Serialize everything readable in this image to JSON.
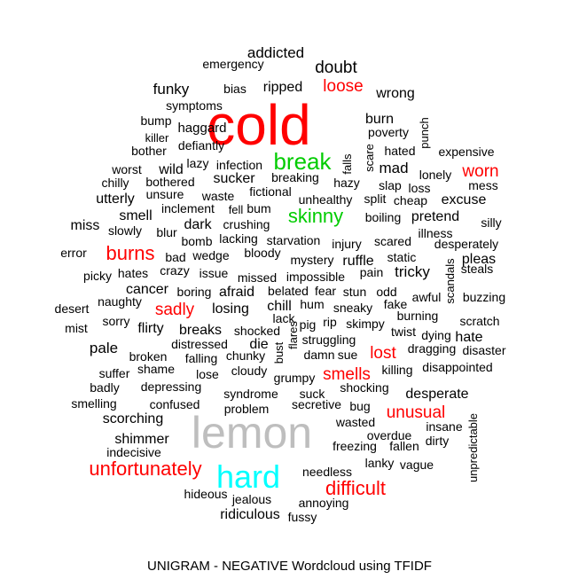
{
  "chart_data": {
    "type": "wordcloud",
    "title": "UNIGRAM - NEGATIVE Wordcloud using TFIDF",
    "colors": {
      "red": "#ff0000",
      "green": "#00cc00",
      "cyan": "#00ffff",
      "gray": "#bebebe",
      "black": "#000000"
    },
    "words": [
      {
        "text": "addicted",
        "color": "black",
        "weight": 17
      },
      {
        "text": "emergency",
        "color": "black",
        "weight": 14
      },
      {
        "text": "doubt",
        "color": "black",
        "weight": 19
      },
      {
        "text": "funky",
        "color": "black",
        "weight": 17
      },
      {
        "text": "bias",
        "color": "black",
        "weight": 14
      },
      {
        "text": "ripped",
        "color": "black",
        "weight": 16
      },
      {
        "text": "loose",
        "color": "red",
        "weight": 19
      },
      {
        "text": "wrong",
        "color": "black",
        "weight": 16
      },
      {
        "text": "symptoms",
        "color": "black",
        "weight": 14
      },
      {
        "text": "cold",
        "color": "red",
        "weight": 64
      },
      {
        "text": "bump",
        "color": "black",
        "weight": 14
      },
      {
        "text": "haggard",
        "color": "black",
        "weight": 15
      },
      {
        "text": "burn",
        "color": "black",
        "weight": 16
      },
      {
        "text": "punch",
        "color": "black",
        "weight": 13
      },
      {
        "text": "killer",
        "color": "black",
        "weight": 13
      },
      {
        "text": "poverty",
        "color": "black",
        "weight": 14
      },
      {
        "text": "bother",
        "color": "black",
        "weight": 14
      },
      {
        "text": "defiantly",
        "color": "black",
        "weight": 14
      },
      {
        "text": "hated",
        "color": "black",
        "weight": 14
      },
      {
        "text": "expensive",
        "color": "black",
        "weight": 14
      },
      {
        "text": "scare",
        "color": "black",
        "weight": 13
      },
      {
        "text": "lazy",
        "color": "black",
        "weight": 14
      },
      {
        "text": "break",
        "color": "green",
        "weight": 26
      },
      {
        "text": "worst",
        "color": "black",
        "weight": 14
      },
      {
        "text": "wild",
        "color": "black",
        "weight": 16
      },
      {
        "text": "infection",
        "color": "black",
        "weight": 14
      },
      {
        "text": "falls",
        "color": "black",
        "weight": 13
      },
      {
        "text": "mad",
        "color": "black",
        "weight": 17
      },
      {
        "text": "lonely",
        "color": "black",
        "weight": 14
      },
      {
        "text": "worn",
        "color": "red",
        "weight": 19
      },
      {
        "text": "chilly",
        "color": "black",
        "weight": 14
      },
      {
        "text": "bothered",
        "color": "black",
        "weight": 14
      },
      {
        "text": "sucker",
        "color": "black",
        "weight": 16
      },
      {
        "text": "breaking",
        "color": "black",
        "weight": 14
      },
      {
        "text": "hazy",
        "color": "black",
        "weight": 14
      },
      {
        "text": "slap",
        "color": "black",
        "weight": 14
      },
      {
        "text": "loss",
        "color": "black",
        "weight": 14
      },
      {
        "text": "mess",
        "color": "black",
        "weight": 14
      },
      {
        "text": "utterly",
        "color": "black",
        "weight": 16
      },
      {
        "text": "unsure",
        "color": "black",
        "weight": 14
      },
      {
        "text": "waste",
        "color": "black",
        "weight": 14
      },
      {
        "text": "fictional",
        "color": "black",
        "weight": 14
      },
      {
        "text": "unhealthy",
        "color": "black",
        "weight": 14
      },
      {
        "text": "split",
        "color": "black",
        "weight": 14
      },
      {
        "text": "cheap",
        "color": "black",
        "weight": 14
      },
      {
        "text": "excuse",
        "color": "black",
        "weight": 16
      },
      {
        "text": "inclement",
        "color": "black",
        "weight": 14
      },
      {
        "text": "fell",
        "color": "black",
        "weight": 13
      },
      {
        "text": "bum",
        "color": "black",
        "weight": 14
      },
      {
        "text": "skinny",
        "color": "green",
        "weight": 22
      },
      {
        "text": "smell",
        "color": "black",
        "weight": 16
      },
      {
        "text": "boiling",
        "color": "black",
        "weight": 14
      },
      {
        "text": "pretend",
        "color": "black",
        "weight": 16
      },
      {
        "text": "miss",
        "color": "black",
        "weight": 16
      },
      {
        "text": "dark",
        "color": "black",
        "weight": 16
      },
      {
        "text": "crushing",
        "color": "black",
        "weight": 14
      },
      {
        "text": "silly",
        "color": "black",
        "weight": 14
      },
      {
        "text": "slowly",
        "color": "black",
        "weight": 14
      },
      {
        "text": "blur",
        "color": "black",
        "weight": 14
      },
      {
        "text": "illness",
        "color": "black",
        "weight": 14
      },
      {
        "text": "bomb",
        "color": "black",
        "weight": 14
      },
      {
        "text": "lacking",
        "color": "black",
        "weight": 14
      },
      {
        "text": "starvation",
        "color": "black",
        "weight": 14
      },
      {
        "text": "injury",
        "color": "black",
        "weight": 14
      },
      {
        "text": "scared",
        "color": "black",
        "weight": 14
      },
      {
        "text": "desperately",
        "color": "black",
        "weight": 14
      },
      {
        "text": "error",
        "color": "black",
        "weight": 14
      },
      {
        "text": "burns",
        "color": "red",
        "weight": 22
      },
      {
        "text": "bad",
        "color": "black",
        "weight": 14
      },
      {
        "text": "wedge",
        "color": "black",
        "weight": 14
      },
      {
        "text": "bloody",
        "color": "black",
        "weight": 14
      },
      {
        "text": "static",
        "color": "black",
        "weight": 14
      },
      {
        "text": "mystery",
        "color": "black",
        "weight": 14
      },
      {
        "text": "ruffle",
        "color": "black",
        "weight": 16
      },
      {
        "text": "pleas",
        "color": "black",
        "weight": 16
      },
      {
        "text": "crazy",
        "color": "black",
        "weight": 14
      },
      {
        "text": "scandals",
        "color": "black",
        "weight": 13
      },
      {
        "text": "steals",
        "color": "black",
        "weight": 14
      },
      {
        "text": "picky",
        "color": "black",
        "weight": 14
      },
      {
        "text": "hates",
        "color": "black",
        "weight": 14
      },
      {
        "text": "issue",
        "color": "black",
        "weight": 14
      },
      {
        "text": "missed",
        "color": "black",
        "weight": 14
      },
      {
        "text": "impossible",
        "color": "black",
        "weight": 14
      },
      {
        "text": "pain",
        "color": "black",
        "weight": 14
      },
      {
        "text": "tricky",
        "color": "black",
        "weight": 17
      },
      {
        "text": "cancer",
        "color": "black",
        "weight": 16
      },
      {
        "text": "boring",
        "color": "black",
        "weight": 14
      },
      {
        "text": "afraid",
        "color": "black",
        "weight": 16
      },
      {
        "text": "belated",
        "color": "black",
        "weight": 14
      },
      {
        "text": "fear",
        "color": "black",
        "weight": 14
      },
      {
        "text": "stun",
        "color": "black",
        "weight": 14
      },
      {
        "text": "odd",
        "color": "black",
        "weight": 14
      },
      {
        "text": "awful",
        "color": "black",
        "weight": 14
      },
      {
        "text": "buzzing",
        "color": "black",
        "weight": 14
      },
      {
        "text": "naughty",
        "color": "black",
        "weight": 14
      },
      {
        "text": "chill",
        "color": "black",
        "weight": 16
      },
      {
        "text": "hum",
        "color": "black",
        "weight": 14
      },
      {
        "text": "fake",
        "color": "black",
        "weight": 14
      },
      {
        "text": "desert",
        "color": "black",
        "weight": 14
      },
      {
        "text": "sadly",
        "color": "red",
        "weight": 19
      },
      {
        "text": "losing",
        "color": "black",
        "weight": 16
      },
      {
        "text": "sneaky",
        "color": "black",
        "weight": 14
      },
      {
        "text": "sorry",
        "color": "black",
        "weight": 14
      },
      {
        "text": "lack",
        "color": "black",
        "weight": 14
      },
      {
        "text": "pig",
        "color": "black",
        "weight": 14
      },
      {
        "text": "rip",
        "color": "black",
        "weight": 14
      },
      {
        "text": "skimpy",
        "color": "black",
        "weight": 14
      },
      {
        "text": "burning",
        "color": "black",
        "weight": 14
      },
      {
        "text": "scratch",
        "color": "black",
        "weight": 14
      },
      {
        "text": "mist",
        "color": "black",
        "weight": 14
      },
      {
        "text": "flirty",
        "color": "black",
        "weight": 16
      },
      {
        "text": "breaks",
        "color": "black",
        "weight": 16
      },
      {
        "text": "shocked",
        "color": "black",
        "weight": 14
      },
      {
        "text": "flares",
        "color": "black",
        "weight": 13
      },
      {
        "text": "twist",
        "color": "black",
        "weight": 14
      },
      {
        "text": "dying",
        "color": "black",
        "weight": 14
      },
      {
        "text": "hate",
        "color": "black",
        "weight": 16
      },
      {
        "text": "pale",
        "color": "black",
        "weight": 17
      },
      {
        "text": "distressed",
        "color": "black",
        "weight": 14
      },
      {
        "text": "die",
        "color": "black",
        "weight": 16
      },
      {
        "text": "struggling",
        "color": "black",
        "weight": 14
      },
      {
        "text": "dragging",
        "color": "black",
        "weight": 14
      },
      {
        "text": "disaster",
        "color": "black",
        "weight": 14
      },
      {
        "text": "broken",
        "color": "black",
        "weight": 14
      },
      {
        "text": "falling",
        "color": "black",
        "weight": 14
      },
      {
        "text": "chunky",
        "color": "black",
        "weight": 14
      },
      {
        "text": "bust",
        "color": "black",
        "weight": 13
      },
      {
        "text": "damn",
        "color": "black",
        "weight": 14
      },
      {
        "text": "sue",
        "color": "black",
        "weight": 14
      },
      {
        "text": "lost",
        "color": "red",
        "weight": 19
      },
      {
        "text": "suffer",
        "color": "black",
        "weight": 14
      },
      {
        "text": "shame",
        "color": "black",
        "weight": 14
      },
      {
        "text": "lose",
        "color": "black",
        "weight": 14
      },
      {
        "text": "cloudy",
        "color": "black",
        "weight": 14
      },
      {
        "text": "grumpy",
        "color": "black",
        "weight": 14
      },
      {
        "text": "smells",
        "color": "red",
        "weight": 19
      },
      {
        "text": "killing",
        "color": "black",
        "weight": 14
      },
      {
        "text": "disappointed",
        "color": "black",
        "weight": 14
      },
      {
        "text": "badly",
        "color": "black",
        "weight": 14
      },
      {
        "text": "depressing",
        "color": "black",
        "weight": 14
      },
      {
        "text": "syndrome",
        "color": "black",
        "weight": 14
      },
      {
        "text": "suck",
        "color": "black",
        "weight": 14
      },
      {
        "text": "shocking",
        "color": "black",
        "weight": 14
      },
      {
        "text": "desperate",
        "color": "black",
        "weight": 16
      },
      {
        "text": "smelling",
        "color": "black",
        "weight": 14
      },
      {
        "text": "confused",
        "color": "black",
        "weight": 14
      },
      {
        "text": "problem",
        "color": "black",
        "weight": 14
      },
      {
        "text": "secretive",
        "color": "black",
        "weight": 14
      },
      {
        "text": "bug",
        "color": "black",
        "weight": 14
      },
      {
        "text": "unusual",
        "color": "red",
        "weight": 19
      },
      {
        "text": "unpredictable",
        "color": "black",
        "weight": 13
      },
      {
        "text": "scorching",
        "color": "black",
        "weight": 16
      },
      {
        "text": "wasted",
        "color": "black",
        "weight": 14
      },
      {
        "text": "insane",
        "color": "black",
        "weight": 14
      },
      {
        "text": "lemon",
        "color": "gray",
        "weight": 50
      },
      {
        "text": "overdue",
        "color": "black",
        "weight": 14
      },
      {
        "text": "shimmer",
        "color": "black",
        "weight": 16
      },
      {
        "text": "dirty",
        "color": "black",
        "weight": 14
      },
      {
        "text": "freezing",
        "color": "black",
        "weight": 14
      },
      {
        "text": "fallen",
        "color": "black",
        "weight": 14
      },
      {
        "text": "indecisive",
        "color": "black",
        "weight": 14
      },
      {
        "text": "unfortunately",
        "color": "red",
        "weight": 22
      },
      {
        "text": "lanky",
        "color": "black",
        "weight": 14
      },
      {
        "text": "vague",
        "color": "black",
        "weight": 14
      },
      {
        "text": "hard",
        "color": "cyan",
        "weight": 36
      },
      {
        "text": "needless",
        "color": "black",
        "weight": 14
      },
      {
        "text": "difficult",
        "color": "red",
        "weight": 22
      },
      {
        "text": "hideous",
        "color": "black",
        "weight": 14
      },
      {
        "text": "jealous",
        "color": "black",
        "weight": 14
      },
      {
        "text": "annoying",
        "color": "black",
        "weight": 14
      },
      {
        "text": "ridiculous",
        "color": "black",
        "weight": 16
      },
      {
        "text": "fussy",
        "color": "black",
        "weight": 14
      }
    ]
  }
}
